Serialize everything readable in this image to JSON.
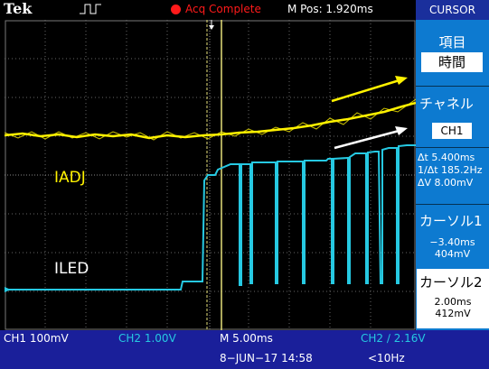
{
  "header": {
    "brand": "Tek",
    "acq_status": "Acq Complete",
    "mpos": "M Pos: 1.920ms"
  },
  "side_menu": {
    "title": "CURSOR",
    "item_label": "項目",
    "item_value": "時間",
    "channel_label": "チャネル",
    "channel_value": "CH1",
    "readouts": [
      "Δt 5.400ms",
      "1/Δt 185.2Hz",
      "ΔV 8.00mV"
    ],
    "cursor1": {
      "label": "カーソル1",
      "time": "−3.40ms",
      "volt": "404mV"
    },
    "cursor2": {
      "label": "カーソル2",
      "time": "2.00ms",
      "volt": "412mV"
    }
  },
  "traces": {
    "ch1_label": "IADJ",
    "ch2_label": "ILED"
  },
  "bottom_bar": {
    "ch1_scale": "CH1  100mV",
    "ch2_scale": "CH2  1.00V",
    "timebase": "M 5.00ms",
    "trigger": "CH2 ∕ 2.16V",
    "date": "8−JUN−17 14:58",
    "freq": "<10Hz"
  },
  "colors": {
    "ch1": "#fff200",
    "ch2": "#26c9e2",
    "accent_red": "#ff1a1a",
    "side_panel": "#0d7ad0",
    "bottom_bar": "#1a1f9a"
  }
}
